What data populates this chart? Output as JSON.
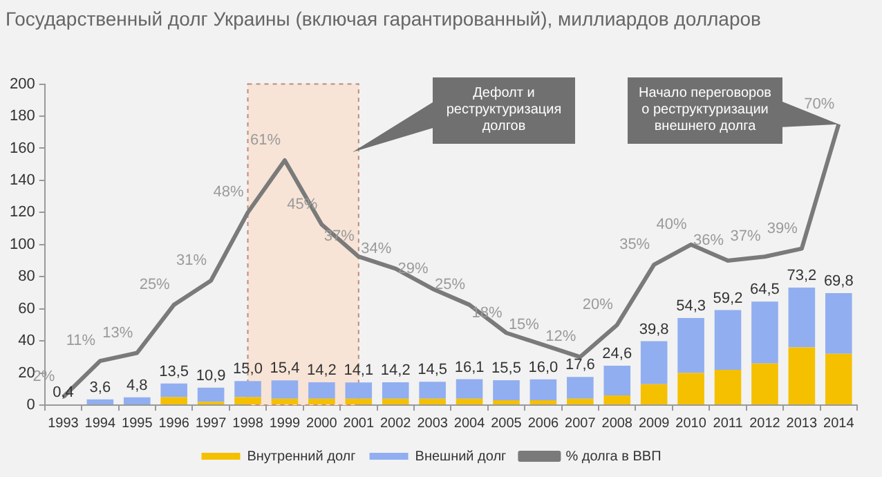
{
  "chart_data": {
    "type": "bar",
    "title": "Государственный долг Украины (включая гарантированный), миллиардов долларов",
    "categories": [
      "1993",
      "1994",
      "1995",
      "1996",
      "1997",
      "1998",
      "1999",
      "2000",
      "2001",
      "2002",
      "2003",
      "2004",
      "2005",
      "2006",
      "2007",
      "2008",
      "2009",
      "2010",
      "2011",
      "2012",
      "2013",
      "2014"
    ],
    "stacked": true,
    "series": [
      {
        "name": "Внутренний долг",
        "color": "#f5c000",
        "values": [
          0,
          0,
          0,
          5,
          2,
          5,
          4,
          4,
          4,
          4,
          4,
          4,
          3,
          3,
          4,
          6,
          13,
          20,
          22,
          26,
          36,
          32
        ]
      },
      {
        "name": "Внешний долг",
        "color": "#91aef0",
        "values": [
          0.4,
          3.6,
          4.8,
          8.5,
          8.9,
          10.0,
          11.4,
          10.2,
          10.1,
          10.2,
          10.5,
          12.1,
          12.5,
          13.0,
          13.6,
          18.6,
          26.8,
          34.3,
          37.2,
          38.5,
          37.2,
          37.8
        ]
      },
      {
        "name": "% долга в ВВП",
        "type": "line",
        "axis": "y2",
        "color": "#7a7a7a",
        "values": [
          2,
          11,
          13,
          25,
          31,
          48,
          61,
          45,
          37,
          34,
          29,
          25,
          18,
          15,
          12,
          20,
          35,
          40,
          36,
          37,
          39,
          70
        ],
        "value_labels": [
          "2%",
          "11%",
          "13%",
          "25%",
          "31%",
          "48%",
          "61%",
          "45%",
          "37%",
          "34%",
          "29%",
          "25%",
          "18%",
          "15%",
          "12%",
          "20%",
          "35%",
          "40%",
          "36%",
          "37%",
          "39%",
          "70%"
        ]
      }
    ],
    "totals": [
      "0,4",
      "3,6",
      "4,8",
      "13,5",
      "10,9",
      "15,0",
      "15,4",
      "14,2",
      "14,1",
      "14,2",
      "14,5",
      "16,1",
      "15,5",
      "16,0",
      "17,6",
      "24,6",
      "39,8",
      "54,3",
      "59,2",
      "64,5",
      "73,2",
      "69,8"
    ],
    "ylim": [
      0,
      200
    ],
    "yticks": [
      0,
      20,
      40,
      60,
      80,
      100,
      120,
      140,
      160,
      180,
      200
    ],
    "y2lim": [
      0,
      80
    ],
    "bands": [
      {
        "axis": "x",
        "from": "1998",
        "to": "2001",
        "color": "#f7e4d6"
      }
    ],
    "annotations": [
      "Дефолт и реструктуризация долгов",
      "Начало переговоров о реструктуризации внешнего долга"
    ],
    "grid": false,
    "legend": "bottom",
    "marker": "none",
    "line_style": "solid"
  }
}
